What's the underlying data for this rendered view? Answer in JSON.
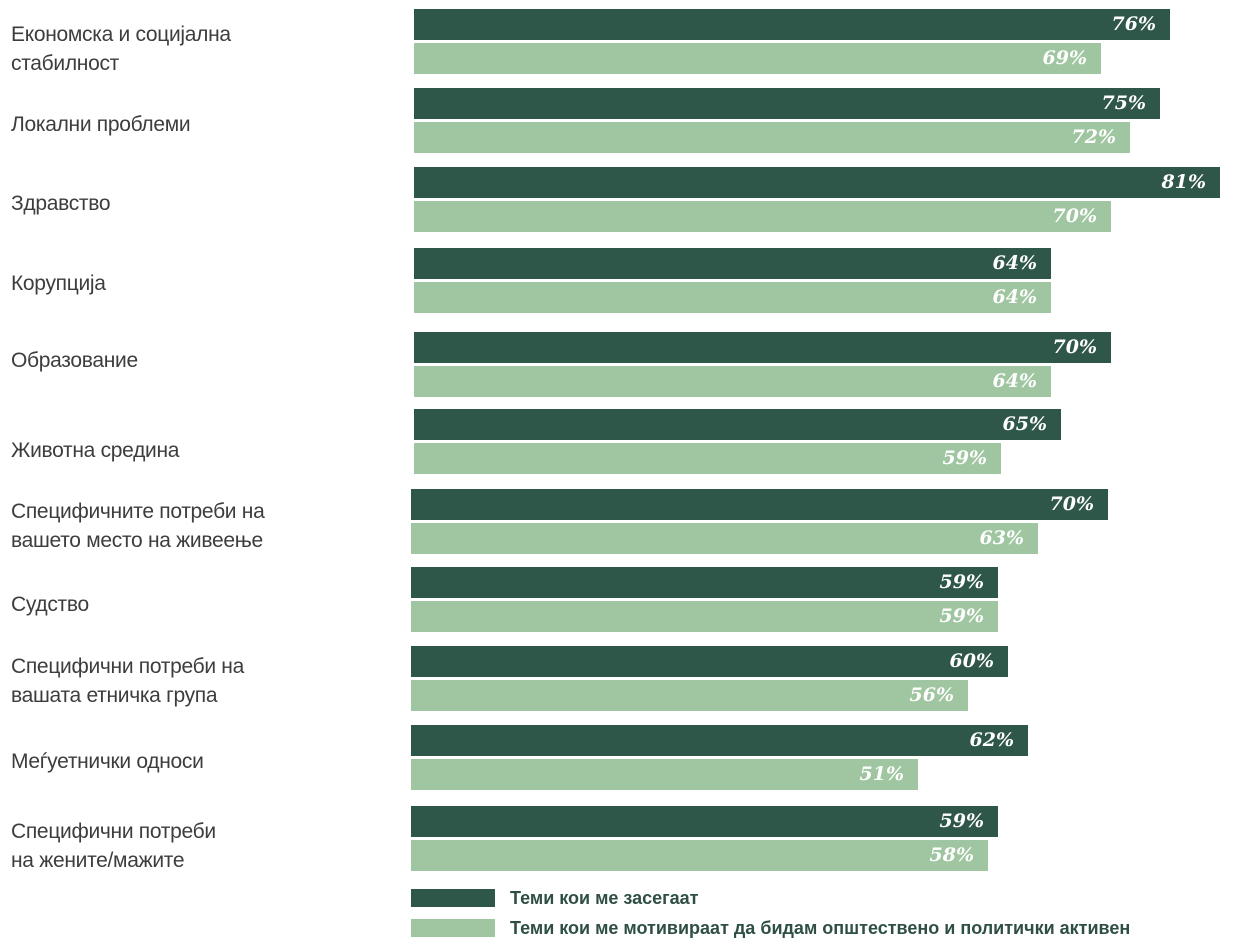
{
  "chart_data": {
    "type": "bar",
    "orientation": "horizontal",
    "categories": [
      "Економска и социјална\nстабилност",
      "Локални проблеми",
      "Здравство",
      "Корупција",
      "Образование",
      "Животна средина",
      "Специфичните потреби на\nвашето место на живеење",
      "Судство",
      "Специфични потреби на\nвашата етничка група",
      "Меѓуетнички односи",
      "Специфични потреби\nна жените/мажите"
    ],
    "series": [
      {
        "name": "Теми кои ме засегаат",
        "color": "#2f5749",
        "values": [
          76,
          75,
          81,
          64,
          70,
          65,
          70,
          59,
          60,
          62,
          59
        ],
        "labels": [
          "76%",
          "75%",
          "81%",
          "64%",
          "70%",
          "65%",
          "70%",
          "59%",
          "60%",
          "62%",
          "59%"
        ]
      },
      {
        "name": "Теми кои ме мотивираат да бидам општествено и политички активен",
        "color": "#a0c6a1",
        "values": [
          69,
          72,
          70,
          64,
          64,
          59,
          63,
          59,
          56,
          51,
          58
        ],
        "labels": [
          "69%",
          "72%",
          "70%",
          "64%",
          "64%",
          "59%",
          "63%",
          "59%",
          "56%",
          "51%",
          "58%"
        ]
      }
    ],
    "unit": "%",
    "xlim": [
      0,
      81
    ],
    "grid": false,
    "legend_position": "bottom"
  }
}
